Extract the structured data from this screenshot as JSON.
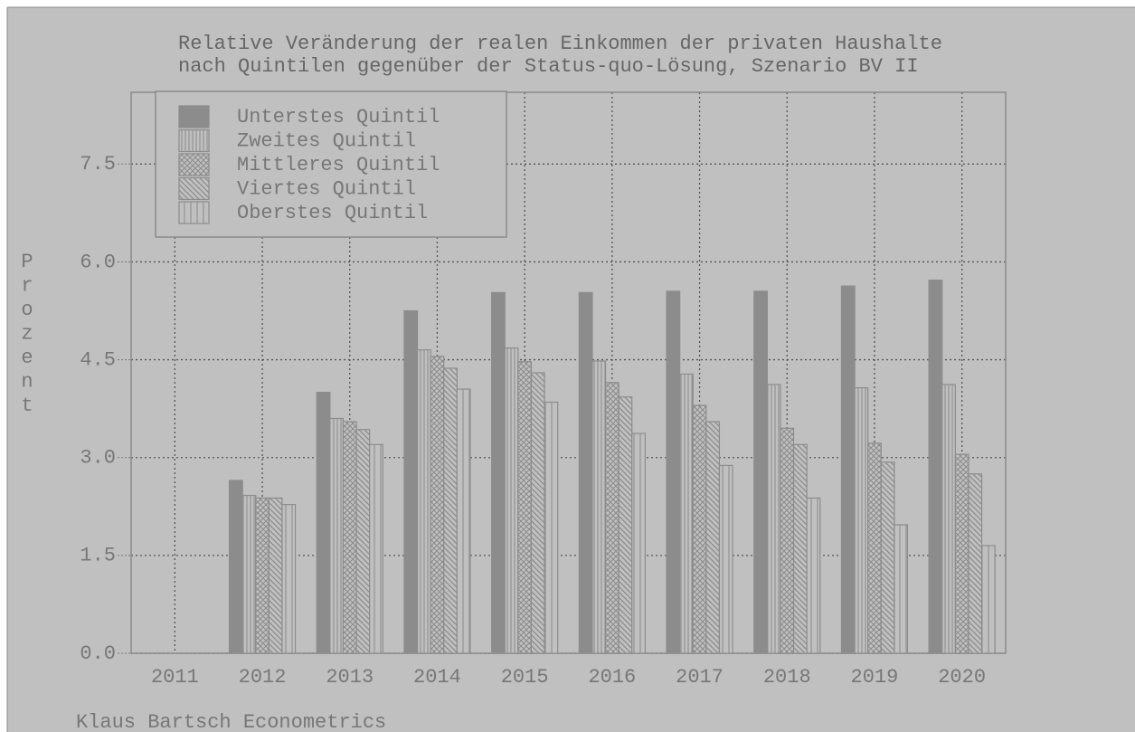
{
  "chart_data": {
    "type": "bar",
    "title": [
      "Relative Veränderung der realen Einkommen der privaten Haushalte",
      "nach Quintilen gegenüber der Status-quo-Lösung, Szenario BV II"
    ],
    "ylabel": "Prozent",
    "footer": "Klaus Bartsch Econometrics",
    "categories": [
      "2011",
      "2012",
      "2013",
      "2014",
      "2015",
      "2016",
      "2017",
      "2018",
      "2019",
      "2020"
    ],
    "series": [
      {
        "name": "Unterstes Quintil",
        "color": "#8c8c8c",
        "pattern": "solid",
        "values": [
          null,
          2.65,
          4.0,
          5.25,
          5.53,
          5.53,
          5.55,
          5.55,
          5.63,
          5.72
        ]
      },
      {
        "name": "Zweites Quintil",
        "color": "#8c8c8c",
        "pattern": "vlines-fine",
        "values": [
          null,
          2.42,
          3.6,
          4.65,
          4.68,
          4.48,
          4.28,
          4.12,
          4.07,
          4.12
        ]
      },
      {
        "name": "Mittleres Quintil",
        "color": "#8c8c8c",
        "pattern": "crosshatch",
        "values": [
          null,
          2.38,
          3.55,
          4.55,
          4.47,
          4.15,
          3.8,
          3.45,
          3.22,
          3.05
        ]
      },
      {
        "name": "Viertes Quintil",
        "color": "#8c8c8c",
        "pattern": "diagonal",
        "values": [
          null,
          2.38,
          3.43,
          4.37,
          4.3,
          3.93,
          3.55,
          3.2,
          2.93,
          2.75
        ]
      },
      {
        "name": "Oberstes Quintil",
        "color": "#8c8c8c",
        "pattern": "vlines-wide",
        "values": [
          null,
          2.28,
          3.2,
          4.05,
          3.85,
          3.37,
          2.88,
          2.38,
          1.97,
          1.65
        ]
      }
    ],
    "ylim": [
      0,
      8.6
    ],
    "yticks": [
      {
        "value": 0,
        "label": "0.0"
      },
      1.5,
      {
        "value": 3,
        "label": "3.0"
      },
      4.5,
      {
        "value": 6,
        "label": "6.0"
      },
      7.5
    ],
    "grid": true,
    "legend": "upper left"
  }
}
